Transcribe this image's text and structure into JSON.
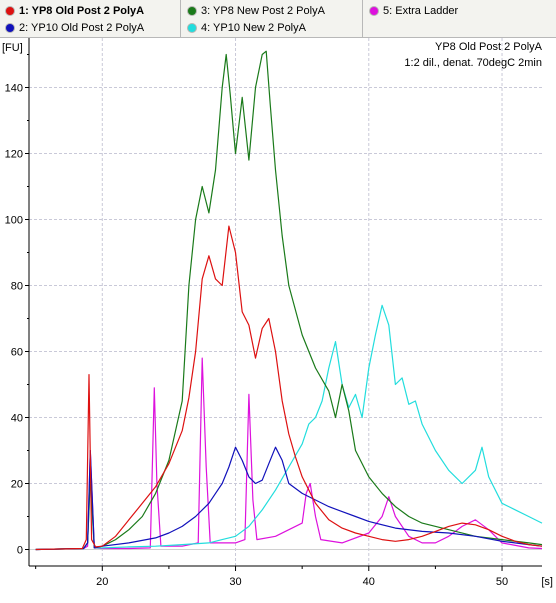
{
  "legend": [
    {
      "label": "1: YP8 Old Post 2 PolyA",
      "color": "#dd1111",
      "selected": true
    },
    {
      "label": "2: YP10 Old Post 2 PolyA",
      "color": "#1111bb",
      "selected": false
    },
    {
      "label": "3: YP8  New Post 2 PolyA",
      "color": "#1a7a1a",
      "selected": false
    },
    {
      "label": "4: YP10 New 2 PolyA",
      "color": "#22dddd",
      "selected": false
    },
    {
      "label": "5: Extra Ladder",
      "color": "#dd11dd",
      "selected": false
    }
  ],
  "chart_data": {
    "type": "line",
    "title": "YP8 Old Post 2 PolyA",
    "subtitle": "1:2 dil., denat. 70degC 2min",
    "xlabel": "[s]",
    "ylabel": "[FU]",
    "xlim": [
      14.5,
      53
    ],
    "ylim": [
      -5,
      155
    ],
    "xticks": [
      20,
      30,
      40,
      50
    ],
    "yticks": [
      0,
      20,
      40,
      60,
      80,
      100,
      120,
      140
    ],
    "grid": true,
    "series": [
      {
        "name": "1: YP8 Old Post 2 PolyA",
        "color": "#dd1111",
        "x": [
          15,
          18.5,
          18.8,
          19.0,
          19.2,
          19.5,
          20,
          21,
          22,
          23,
          24,
          25,
          26,
          26.5,
          27,
          27.5,
          28,
          28.5,
          29,
          29.5,
          30,
          30.5,
          31,
          31.5,
          32,
          32.5,
          33,
          33.5,
          34,
          34.5,
          35,
          36,
          37,
          38,
          39,
          40,
          41,
          42,
          43,
          44,
          45,
          46,
          47,
          48,
          49,
          50,
          51,
          52,
          53
        ],
        "y": [
          0,
          0.3,
          3,
          53,
          3,
          0.8,
          1,
          4,
          9,
          14,
          19,
          26,
          36,
          46,
          60,
          82,
          89,
          82,
          80,
          98,
          90,
          72,
          68,
          58,
          67,
          70,
          60,
          45,
          35,
          28,
          22,
          14,
          9,
          6.5,
          5,
          4,
          3,
          2.5,
          3,
          4,
          5.5,
          7,
          8,
          7.5,
          6,
          4,
          2.5,
          1.5,
          1
        ]
      },
      {
        "name": "2: YP10 Old Post 2 PolyA",
        "color": "#1111bb",
        "x": [
          15,
          18.6,
          18.9,
          19.1,
          19.4,
          20,
          22,
          24,
          25,
          26,
          27,
          28,
          28.5,
          29,
          29.5,
          30,
          30.5,
          31,
          31.5,
          32,
          32.5,
          33,
          33.5,
          34,
          35,
          36,
          37,
          38,
          39,
          40,
          42,
          44,
          46,
          48,
          50,
          52,
          53
        ],
        "y": [
          0,
          0.3,
          2,
          30,
          0.5,
          1,
          2,
          3.5,
          5,
          7,
          10,
          14,
          17,
          20,
          25,
          31,
          27,
          22,
          20,
          21,
          26,
          31,
          27,
          20,
          17,
          15,
          13,
          11.5,
          10,
          8.5,
          6.5,
          5.5,
          5,
          4,
          2.5,
          1.5,
          1
        ]
      },
      {
        "name": "3: YP8  New Post 2 PolyA",
        "color": "#1a7a1a",
        "x": [
          15,
          18.6,
          18.9,
          19.1,
          19.4,
          20,
          21,
          22,
          23,
          24,
          25,
          26,
          26.5,
          27,
          27.5,
          28,
          28.5,
          29,
          29.3,
          29.6,
          30,
          30.5,
          31,
          31.5,
          32,
          32.3,
          32.6,
          33,
          33.5,
          34,
          35,
          36,
          37,
          37.5,
          38,
          38.5,
          39,
          40,
          41,
          42,
          43,
          44,
          46,
          48,
          50,
          52,
          53
        ],
        "y": [
          0,
          0.3,
          2,
          22,
          0.5,
          1,
          3,
          6,
          10,
          17,
          27,
          45,
          80,
          100,
          110,
          102,
          115,
          140,
          150,
          138,
          120,
          137,
          118,
          140,
          150,
          151,
          135,
          115,
          95,
          80,
          65,
          55,
          48,
          40,
          50,
          42,
          30,
          22,
          17,
          13,
          10,
          8,
          6,
          4,
          3,
          2,
          1.5
        ]
      },
      {
        "name": "4: YP10 New 2 PolyA",
        "color": "#22dddd",
        "x": [
          15,
          18.6,
          18.9,
          19.1,
          19.4,
          20,
          22,
          24,
          26,
          28,
          29,
          30,
          31,
          32,
          33,
          34,
          35,
          35.5,
          36,
          36.5,
          37,
          37.5,
          38,
          38.5,
          39,
          39.5,
          40,
          40.5,
          41,
          41.5,
          42,
          42.5,
          43,
          43.5,
          44,
          45,
          46,
          47,
          48,
          48.5,
          49,
          50,
          51,
          52,
          53
        ],
        "y": [
          0,
          0.3,
          2,
          22,
          0.5,
          0.5,
          0.8,
          1,
          1.5,
          2,
          3,
          4,
          7,
          12,
          18,
          25,
          32,
          38,
          40,
          45,
          55,
          63,
          50,
          43,
          47,
          40,
          55,
          65,
          74,
          68,
          50,
          52,
          44,
          45,
          38,
          30,
          24,
          20,
          24,
          31,
          22,
          14,
          12,
          10,
          8
        ]
      },
      {
        "name": "5: Extra Ladder",
        "color": "#dd11dd",
        "x": [
          15,
          18.6,
          18.9,
          19.1,
          19.4,
          20,
          22,
          23.6,
          23.9,
          24.1,
          24.4,
          26,
          27.2,
          27.5,
          27.8,
          28.1,
          30,
          30.7,
          31.0,
          31.3,
          31.6,
          33,
          35,
          35.3,
          35.6,
          36.0,
          36.4,
          38,
          40,
          41,
          41.5,
          42,
          43,
          44,
          45,
          46,
          47,
          48,
          49,
          50,
          52,
          53
        ],
        "y": [
          0,
          0.3,
          1,
          30,
          0.5,
          0.3,
          0.3,
          0.5,
          49,
          20,
          1,
          1,
          2,
          58,
          25,
          2,
          2,
          3,
          47,
          15,
          3,
          4,
          8,
          17,
          20,
          10,
          3,
          2,
          5,
          10,
          16,
          10,
          4,
          2,
          2,
          4,
          7,
          9,
          6,
          2,
          0.5,
          0.3
        ]
      }
    ]
  }
}
